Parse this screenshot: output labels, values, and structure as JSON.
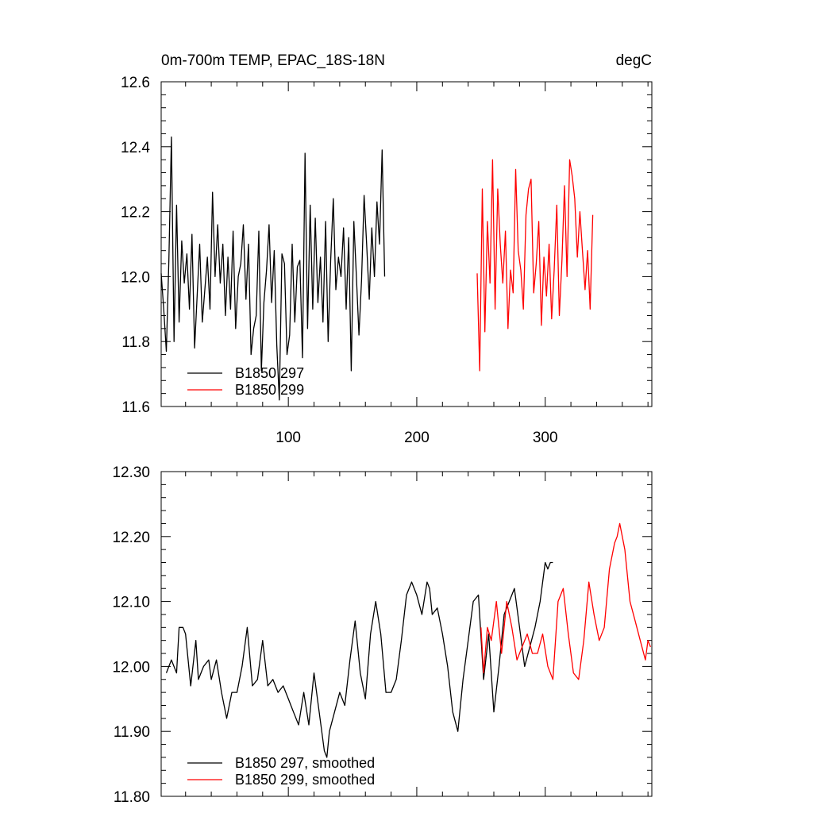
{
  "chart_data": [
    {
      "type": "line",
      "title": "0m-700m TEMP, EPAC_18S-18N",
      "units": "degC",
      "xlim": [
        1,
        383
      ],
      "ylim": [
        11.6,
        12.6
      ],
      "x_ticks": [
        100,
        200,
        300
      ],
      "x_tick_labels": [
        "100",
        "200",
        "300"
      ],
      "y_ticks": [
        11.6,
        11.8,
        12.0,
        12.2,
        12.4,
        12.6
      ],
      "y_tick_labels": [
        "11.6",
        "11.8",
        "12.0",
        "12.2",
        "12.4",
        "12.6"
      ],
      "legend_position": "bottom-left",
      "series": [
        {
          "name": "B1850 297",
          "color": "#000000",
          "x_start": 1,
          "x_step": 2,
          "values": [
            12.01,
            11.9,
            11.77,
            12.05,
            12.43,
            11.8,
            12.22,
            11.86,
            12.11,
            11.98,
            12.07,
            11.9,
            12.13,
            11.78,
            11.94,
            12.1,
            11.86,
            11.96,
            12.06,
            11.9,
            12.26,
            12.0,
            12.16,
            11.98,
            12.1,
            11.88,
            12.06,
            11.9,
            12.14,
            11.84,
            12.0,
            12.04,
            12.16,
            11.93,
            12.1,
            11.76,
            11.84,
            11.88,
            12.14,
            11.71,
            11.92,
            12.02,
            12.16,
            11.92,
            12.08,
            11.79,
            11.62,
            12.07,
            12.04,
            11.76,
            11.82,
            12.1,
            11.86,
            12.03,
            12.05,
            11.75,
            12.38,
            11.84,
            12.22,
            11.9,
            12.18,
            11.92,
            12.06,
            11.86,
            12.17,
            11.8,
            12.05,
            12.24,
            11.96,
            12.06,
            12.0,
            12.15,
            11.9,
            12.12,
            11.71,
            12.17,
            12.0,
            11.82,
            11.99,
            12.25,
            12.1,
            11.93,
            12.15,
            12.0,
            12.23,
            12.1,
            12.39,
            12.0
          ],
          "shown_to_x": 305
        },
        {
          "name": "B1850 299",
          "color": "#ff0000",
          "x_start": 247,
          "x_step": 2,
          "values": [
            12.01,
            11.71,
            12.27,
            11.83,
            12.17,
            11.98,
            12.36,
            11.9,
            12.27,
            12.1,
            11.98,
            12.14,
            11.84,
            12.02,
            11.95,
            12.33,
            12.08,
            12.02,
            11.9,
            12.19,
            12.27,
            12.3,
            11.95,
            12.04,
            12.17,
            11.85,
            12.06,
            11.94,
            12.1,
            11.87,
            12.02,
            12.22,
            11.88,
            12.05,
            12.28,
            12.0,
            12.36,
            12.31,
            12.24,
            12.06,
            12.2,
            12.08,
            11.96,
            12.08,
            11.9,
            12.19
          ],
          "shown_to_x": 380
        }
      ]
    },
    {
      "type": "line",
      "xlim": [
        1,
        383
      ],
      "ylim": [
        11.8,
        12.3
      ],
      "x_ticks": [
        100,
        200,
        300
      ],
      "y_ticks": [
        11.8,
        11.9,
        12.0,
        12.1,
        12.2,
        12.3
      ],
      "y_tick_labels": [
        "11.80",
        "11.90",
        "12.00",
        "12.10",
        "12.20",
        "12.30"
      ],
      "legend_position": "bottom-left",
      "series": [
        {
          "name": "B1850 297, smoothed",
          "color": "#000000",
          "x": [
            5,
            9,
            13,
            15,
            18,
            20,
            24,
            28,
            30,
            34,
            38,
            40,
            44,
            48,
            52,
            56,
            60,
            64,
            68,
            72,
            76,
            80,
            84,
            88,
            92,
            96,
            100,
            104,
            108,
            112,
            116,
            120,
            124,
            128,
            130,
            132,
            136,
            140,
            144,
            148,
            152,
            156,
            160,
            164,
            168,
            172,
            176,
            180,
            184,
            188,
            192,
            196,
            200,
            204,
            208,
            210,
            212,
            216,
            220,
            224,
            228,
            232,
            236,
            240,
            244,
            248,
            252,
            256,
            260,
            264,
            268,
            272,
            276,
            280,
            284,
            288,
            292,
            296,
            300,
            302,
            304,
            306
          ],
          "values": [
            11.99,
            12.01,
            11.99,
            12.06,
            12.06,
            12.05,
            11.97,
            12.04,
            11.98,
            12.0,
            12.01,
            11.98,
            12.01,
            11.96,
            11.92,
            11.96,
            11.96,
            12.0,
            12.06,
            11.97,
            11.98,
            12.04,
            11.97,
            11.98,
            11.96,
            11.97,
            11.95,
            11.93,
            11.91,
            11.96,
            11.91,
            11.99,
            11.93,
            11.87,
            11.86,
            11.9,
            11.93,
            11.96,
            11.94,
            12.01,
            12.07,
            11.99,
            11.95,
            12.05,
            12.1,
            12.05,
            11.96,
            11.96,
            11.98,
            12.04,
            12.11,
            12.13,
            12.11,
            12.08,
            12.13,
            12.12,
            12.08,
            12.09,
            12.05,
            12.0,
            11.93,
            11.9,
            11.98,
            12.04,
            12.1,
            12.11,
            11.98,
            12.05,
            11.93,
            12.0,
            12.08,
            12.1,
            12.12,
            12.06,
            12.0,
            12.03,
            12.06,
            12.1,
            12.16,
            12.15,
            12.16,
            12.16
          ]
        },
        {
          "name": "B1850 299, smoothed",
          "color": "#ff0000",
          "x": [
            250,
            252,
            255,
            258,
            262,
            266,
            270,
            274,
            278,
            282,
            286,
            290,
            294,
            298,
            302,
            306,
            310,
            314,
            318,
            322,
            326,
            330,
            334,
            338,
            342,
            346,
            350,
            354,
            356,
            358,
            362,
            366,
            370,
            374,
            378,
            380,
            382
          ],
          "values": [
            12.06,
            11.99,
            12.06,
            12.04,
            12.1,
            12.02,
            12.1,
            12.06,
            12.01,
            12.03,
            12.05,
            12.02,
            12.02,
            12.05,
            12.0,
            11.98,
            12.1,
            12.12,
            12.05,
            11.99,
            11.98,
            12.04,
            12.13,
            12.08,
            12.04,
            12.06,
            12.15,
            12.19,
            12.2,
            12.22,
            12.18,
            12.1,
            12.07,
            12.04,
            12.01,
            12.04,
            12.03
          ]
        }
      ]
    }
  ]
}
